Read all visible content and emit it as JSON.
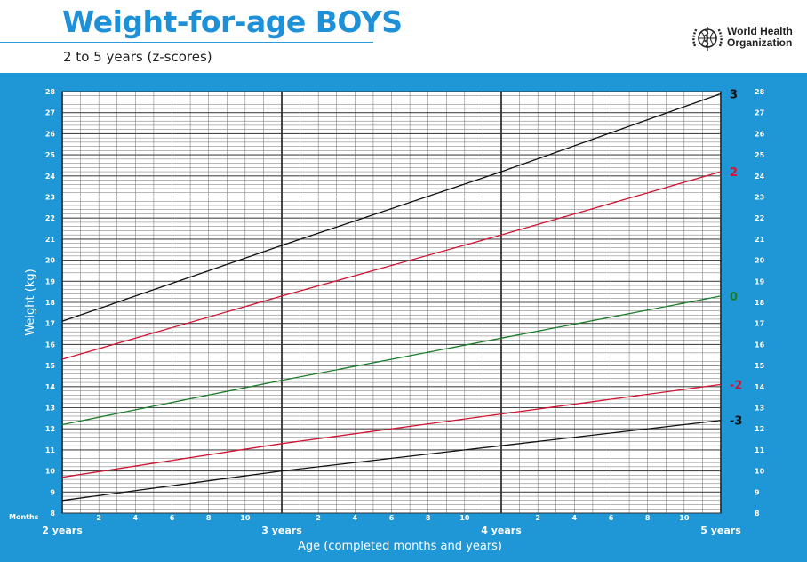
{
  "header": {
    "title": "Weight-for-age BOYS",
    "subtitle": "2 to 5 years (z-scores)",
    "organization_line1": "World Health",
    "organization_line2": "Organization"
  },
  "colors": {
    "panel": "#1f96d5",
    "grid": "#6d6d6d",
    "z_3": "#111111",
    "z_2": "#d11534",
    "z_0": "#1a7d2a",
    "z_neg2": "#d11534",
    "z_neg3": "#111111"
  },
  "chart_data": {
    "type": "line",
    "title": "Weight-for-age BOYS",
    "subtitle": "2 to 5 years (z-scores)",
    "xlabel": "Age (completed months and years)",
    "ylabel": "Weight (kg)",
    "x_unit": "months",
    "xlim": [
      24,
      60
    ],
    "ylim": [
      8,
      28
    ],
    "y_ticks": [
      8,
      9,
      10,
      11,
      12,
      13,
      14,
      15,
      16,
      17,
      18,
      19,
      20,
      21,
      22,
      23,
      24,
      25,
      26,
      27,
      28
    ],
    "x_month_ticks": [
      {
        "x": 26,
        "label": "2"
      },
      {
        "x": 28,
        "label": "4"
      },
      {
        "x": 30,
        "label": "6"
      },
      {
        "x": 32,
        "label": "8"
      },
      {
        "x": 34,
        "label": "10"
      },
      {
        "x": 38,
        "label": "2"
      },
      {
        "x": 40,
        "label": "4"
      },
      {
        "x": 42,
        "label": "6"
      },
      {
        "x": 44,
        "label": "8"
      },
      {
        "x": 46,
        "label": "10"
      },
      {
        "x": 50,
        "label": "2"
      },
      {
        "x": 52,
        "label": "4"
      },
      {
        "x": 54,
        "label": "6"
      },
      {
        "x": 56,
        "label": "8"
      },
      {
        "x": 58,
        "label": "10"
      }
    ],
    "x_year_ticks": [
      {
        "x": 24,
        "label": "2 years"
      },
      {
        "x": 36,
        "label": "3 years"
      },
      {
        "x": 48,
        "label": "4 years"
      },
      {
        "x": 60,
        "label": "5 years"
      }
    ],
    "months_label": "Months",
    "grid": true,
    "series": [
      {
        "name": "3",
        "color": "#111111",
        "x": [
          24,
          36,
          48,
          60
        ],
        "values": [
          17.1,
          20.7,
          24.2,
          27.9
        ]
      },
      {
        "name": "2",
        "color": "#d11534",
        "x": [
          24,
          36,
          48,
          60
        ],
        "values": [
          15.3,
          18.3,
          21.2,
          24.2
        ]
      },
      {
        "name": "0",
        "color": "#1a7d2a",
        "x": [
          24,
          36,
          48,
          60
        ],
        "values": [
          12.2,
          14.3,
          16.3,
          18.3
        ]
      },
      {
        "name": "-2",
        "color": "#d11534",
        "x": [
          24,
          36,
          48,
          60
        ],
        "values": [
          9.7,
          11.3,
          12.7,
          14.1
        ]
      },
      {
        "name": "-3",
        "color": "#111111",
        "x": [
          24,
          36,
          48,
          60
        ],
        "values": [
          8.6,
          10.0,
          11.2,
          12.4
        ]
      }
    ]
  }
}
